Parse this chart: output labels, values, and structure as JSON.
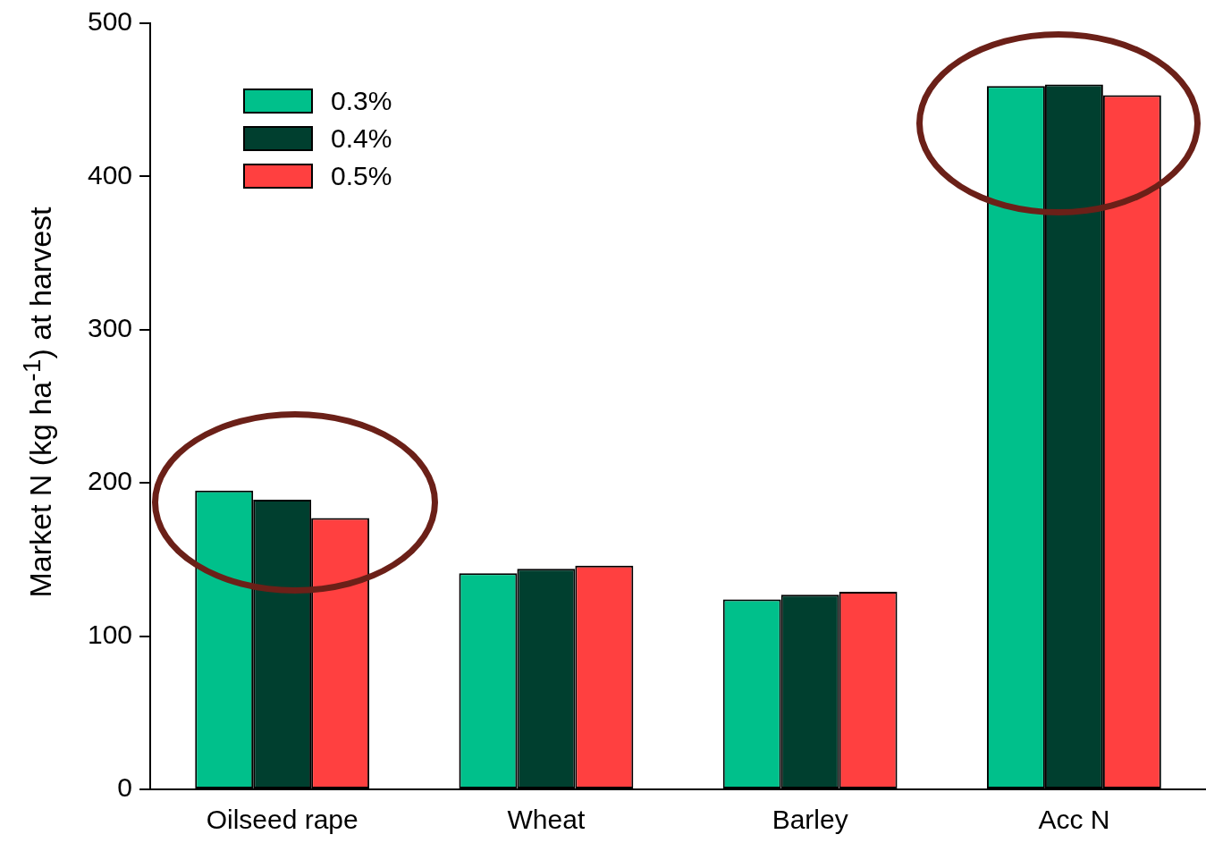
{
  "chart_data": {
    "type": "bar",
    "ylabel": "Market N (kg ha$^{-1}$) at harvest",
    "categories": [
      "Oilseed rape",
      "Wheat",
      "Barley",
      "Acc N"
    ],
    "series": [
      {
        "name": "0.3%",
        "color": "#00c08b",
        "values": [
          195,
          141,
          124,
          459
        ]
      },
      {
        "name": "0.4%",
        "color": "#003f2f",
        "values": [
          189,
          144,
          127,
          460
        ]
      },
      {
        "name": "0.5%",
        "color": "#ff4040",
        "values": [
          177,
          146,
          129,
          453
        ]
      }
    ],
    "ylim": [
      0,
      500
    ],
    "yticks": [
      0,
      100,
      200,
      300,
      400,
      500
    ],
    "grid": false,
    "legend": "top left"
  }
}
